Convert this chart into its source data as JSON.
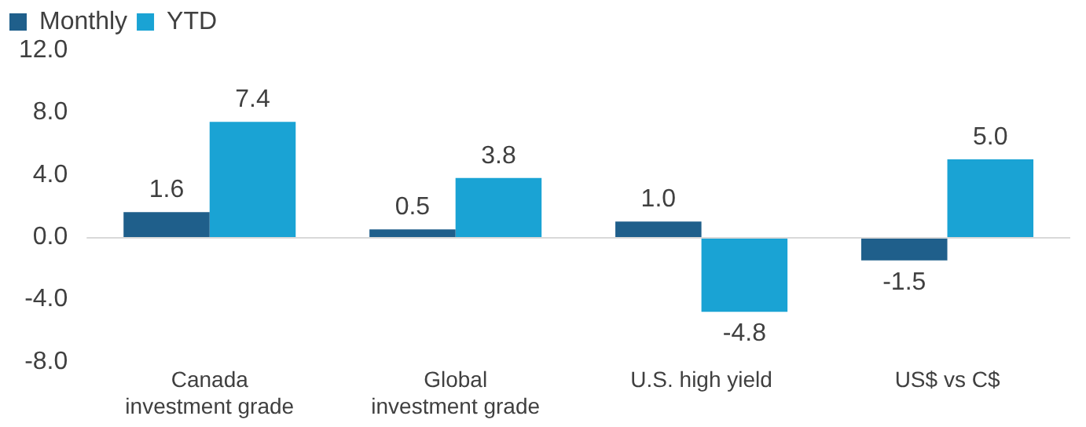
{
  "chart_data": {
    "type": "bar",
    "categories": [
      "Canada investment grade",
      "Global investment grade",
      "U.S. high yield",
      "US$ vs C$"
    ],
    "series": [
      {
        "name": "Monthly",
        "color": "#1f5f8b",
        "values": [
          1.6,
          0.5,
          1.0,
          -1.5
        ],
        "value_labels": [
          "1.6",
          "0.5",
          "1.0",
          "-1.5"
        ]
      },
      {
        "name": "YTD",
        "color": "#1aa3d4",
        "values": [
          7.4,
          3.8,
          -4.8,
          5.0
        ],
        "value_labels": [
          "7.4",
          "3.8",
          "-4.8",
          "5.0"
        ]
      }
    ],
    "ylim": [
      -8,
      12
    ],
    "yticks": [
      {
        "value": -8,
        "label": "-8.0"
      },
      {
        "value": -4,
        "label": "-4.0"
      },
      {
        "value": 0,
        "label": "0.0"
      },
      {
        "value": 4,
        "label": "4.0"
      },
      {
        "value": 8,
        "label": "8.0"
      },
      {
        "value": 12,
        "label": "12.0"
      }
    ],
    "ref_lines": [
      {
        "axis": "y",
        "value": 0,
        "color": "#d9d9d9"
      }
    ],
    "grid": false,
    "legend": "top left"
  }
}
